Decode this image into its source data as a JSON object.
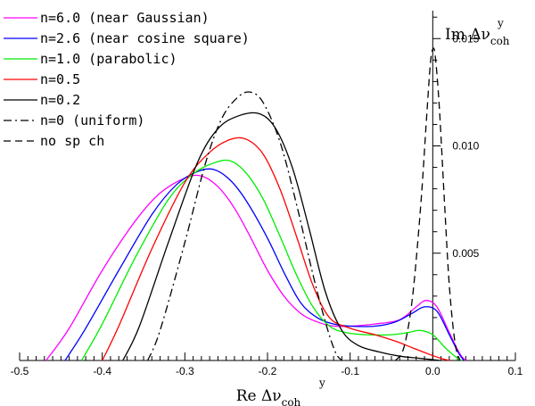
{
  "chart_data": {
    "type": "line",
    "xlabel_main": "Re Δν",
    "xlabel_sup": "y",
    "xlabel_sub": "coh",
    "ylabel_main": "Im Δν",
    "ylabel_sup": "y",
    "ylabel_sub": "coh",
    "xlim": [
      -0.5,
      0.1
    ],
    "ylim": [
      0,
      0.0163
    ],
    "x_ticks": [
      "-0.5",
      "-0.4",
      "-0.3",
      "-0.2",
      "-0.1",
      "0.0",
      "0.1"
    ],
    "x_tick_values": [
      -0.5,
      -0.4,
      -0.3,
      -0.2,
      -0.1,
      0.0,
      0.1
    ],
    "y_ticks": [
      "0.005",
      "0.010",
      "0.015"
    ],
    "y_tick_values": [
      0.005,
      0.01,
      0.015
    ],
    "grid": false,
    "legend_position": "top-left",
    "series": [
      {
        "name": "n=6.0 (near Gaussian)",
        "color": "#ff00ff",
        "dash": "solid",
        "points": [
          [
            -0.468,
            0
          ],
          [
            -0.44,
            0.0015
          ],
          [
            -0.4,
            0.0042
          ],
          [
            -0.36,
            0.0065
          ],
          [
            -0.33,
            0.0078
          ],
          [
            -0.3,
            0.0085
          ],
          [
            -0.28,
            0.0086
          ],
          [
            -0.26,
            0.0081
          ],
          [
            -0.24,
            0.0071
          ],
          [
            -0.22,
            0.0057
          ],
          [
            -0.2,
            0.0042
          ],
          [
            -0.18,
            0.003
          ],
          [
            -0.16,
            0.0022
          ],
          [
            -0.14,
            0.0018
          ],
          [
            -0.12,
            0.0016
          ],
          [
            -0.1,
            0.0016
          ],
          [
            -0.07,
            0.0017
          ],
          [
            -0.04,
            0.0019
          ],
          [
            -0.02,
            0.0025
          ],
          [
            -0.008,
            0.0028
          ],
          [
            0.005,
            0.0025
          ],
          [
            0.02,
            0.0013
          ],
          [
            0.033,
            0.0003
          ],
          [
            0.04,
            0
          ]
        ]
      },
      {
        "name": "n=2.6 (near cosine square)",
        "color": "#0000ff",
        "dash": "solid",
        "points": [
          [
            -0.445,
            0
          ],
          [
            -0.42,
            0.0015
          ],
          [
            -0.38,
            0.0042
          ],
          [
            -0.34,
            0.0068
          ],
          [
            -0.31,
            0.0082
          ],
          [
            -0.285,
            0.0088
          ],
          [
            -0.265,
            0.0089
          ],
          [
            -0.245,
            0.0084
          ],
          [
            -0.225,
            0.0074
          ],
          [
            -0.2,
            0.0057
          ],
          [
            -0.18,
            0.0041
          ],
          [
            -0.16,
            0.0027
          ],
          [
            -0.14,
            0.002
          ],
          [
            -0.12,
            0.0017
          ],
          [
            -0.1,
            0.0016
          ],
          [
            -0.07,
            0.0016
          ],
          [
            -0.045,
            0.0018
          ],
          [
            -0.025,
            0.0022
          ],
          [
            -0.01,
            0.0025
          ],
          [
            0.005,
            0.0023
          ],
          [
            0.02,
            0.0012
          ],
          [
            0.032,
            0.0003
          ],
          [
            0.038,
            0
          ]
        ]
      },
      {
        "name": "n=1.0 (parabolic)",
        "color": "#00ee00",
        "dash": "solid",
        "points": [
          [
            -0.425,
            0
          ],
          [
            -0.4,
            0.0017
          ],
          [
            -0.36,
            0.0048
          ],
          [
            -0.32,
            0.0075
          ],
          [
            -0.29,
            0.0087
          ],
          [
            -0.265,
            0.0092
          ],
          [
            -0.245,
            0.0093
          ],
          [
            -0.225,
            0.0087
          ],
          [
            -0.205,
            0.0075
          ],
          [
            -0.185,
            0.0058
          ],
          [
            -0.165,
            0.004
          ],
          [
            -0.145,
            0.0025
          ],
          [
            -0.125,
            0.0016
          ],
          [
            -0.105,
            0.0013
          ],
          [
            -0.08,
            0.0012
          ],
          [
            -0.05,
            0.0012
          ],
          [
            -0.03,
            0.0013
          ],
          [
            -0.015,
            0.0014
          ],
          [
            0.0,
            0.0012
          ],
          [
            0.015,
            0.0006
          ],
          [
            0.03,
            0.0001
          ],
          [
            0.035,
            0
          ]
        ]
      },
      {
        "name": "n=0.5",
        "color": "#ff0000",
        "dash": "solid",
        "points": [
          [
            -0.4,
            0
          ],
          [
            -0.38,
            0.0016
          ],
          [
            -0.34,
            0.0052
          ],
          [
            -0.3,
            0.0083
          ],
          [
            -0.27,
            0.0097
          ],
          [
            -0.245,
            0.0103
          ],
          [
            -0.225,
            0.0103
          ],
          [
            -0.205,
            0.0096
          ],
          [
            -0.185,
            0.008
          ],
          [
            -0.165,
            0.0058
          ],
          [
            -0.145,
            0.0035
          ],
          [
            -0.125,
            0.002
          ],
          [
            -0.1,
            0.0015
          ],
          [
            -0.07,
            0.0012
          ],
          [
            -0.045,
            0.0009
          ],
          [
            -0.025,
            0.0006
          ],
          [
            -0.005,
            0.0003
          ],
          [
            0.01,
            0.0001
          ],
          [
            0.02,
            0
          ]
        ]
      },
      {
        "name": "n=0.2",
        "color": "#000000",
        "dash": "solid",
        "points": [
          [
            -0.375,
            0
          ],
          [
            -0.355,
            0.0016
          ],
          [
            -0.32,
            0.0055
          ],
          [
            -0.285,
            0.0092
          ],
          [
            -0.26,
            0.0108
          ],
          [
            -0.235,
            0.0114
          ],
          [
            -0.21,
            0.0115
          ],
          [
            -0.19,
            0.0108
          ],
          [
            -0.17,
            0.009
          ],
          [
            -0.15,
            0.0062
          ],
          [
            -0.13,
            0.0032
          ],
          [
            -0.11,
            0.0014
          ],
          [
            -0.09,
            0.0007
          ],
          [
            -0.065,
            0.0004
          ],
          [
            -0.04,
            0.0002
          ],
          [
            -0.015,
            0.0001
          ],
          [
            0.01,
            0
          ]
        ]
      },
      {
        "name": "n=0 (uniform)",
        "color": "#000000",
        "dash": "dashdot",
        "points": [
          [
            -0.345,
            0
          ],
          [
            -0.33,
            0.0014
          ],
          [
            -0.3,
            0.0055
          ],
          [
            -0.275,
            0.0092
          ],
          [
            -0.255,
            0.0113
          ],
          [
            -0.235,
            0.0123
          ],
          [
            -0.22,
            0.0125
          ],
          [
            -0.205,
            0.012
          ],
          [
            -0.185,
            0.0102
          ],
          [
            -0.165,
            0.0073
          ],
          [
            -0.145,
            0.004
          ],
          [
            -0.13,
            0.0018
          ],
          [
            -0.118,
            0.0004
          ],
          [
            -0.11,
            0
          ]
        ]
      },
      {
        "name": "no sp ch",
        "color": "#000000",
        "dash": "dashed",
        "points": [
          [
            -0.045,
            0
          ],
          [
            -0.035,
            0.0006
          ],
          [
            -0.025,
            0.0028
          ],
          [
            -0.015,
            0.007
          ],
          [
            -0.008,
            0.011
          ],
          [
            -0.003,
            0.0138
          ],
          [
            0.0,
            0.0145
          ],
          [
            0.003,
            0.0142
          ],
          [
            0.008,
            0.0118
          ],
          [
            0.014,
            0.0075
          ],
          [
            0.02,
            0.0035
          ],
          [
            0.027,
            0.0008
          ],
          [
            0.033,
            0
          ]
        ]
      }
    ]
  }
}
